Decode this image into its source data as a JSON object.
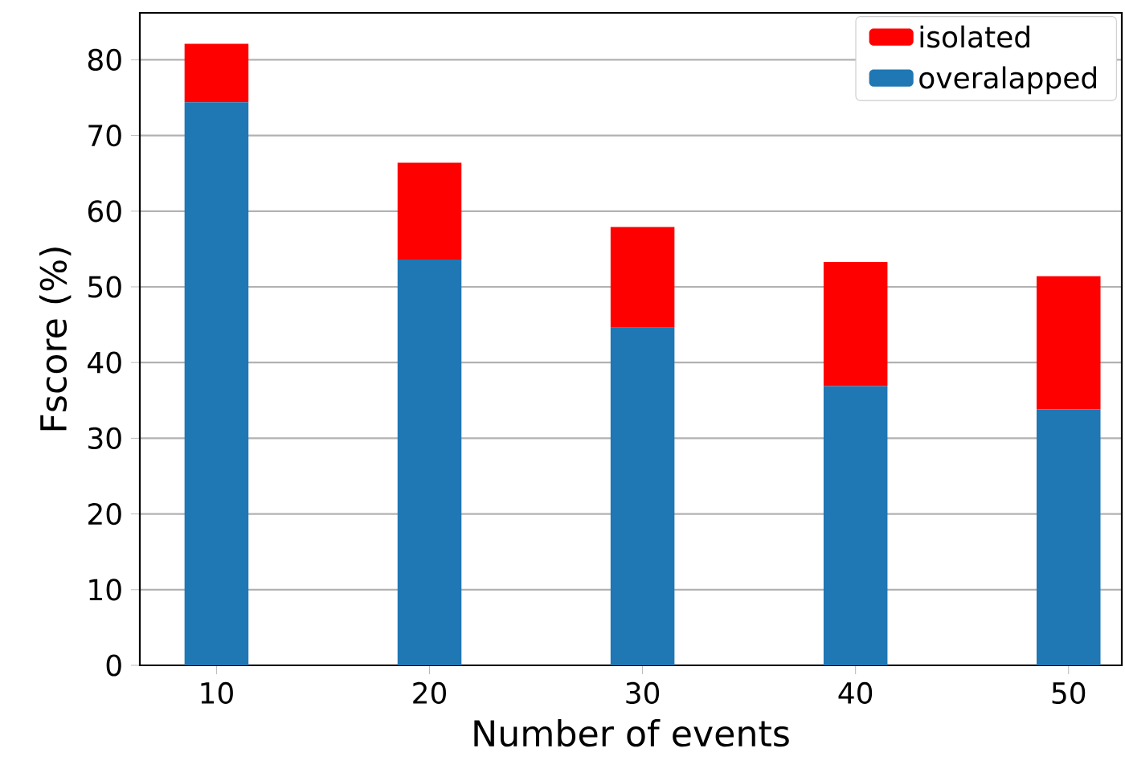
{
  "chart_data": {
    "type": "bar",
    "stacked": true,
    "xlabel": "Number of events",
    "ylabel": "Fscore (%)",
    "categories": [
      "10",
      "20",
      "30",
      "40",
      "50"
    ],
    "series": [
      {
        "name": "overalapped",
        "color": "#1f77b4",
        "values": [
          74.4,
          53.6,
          44.6,
          36.9,
          33.8
        ]
      },
      {
        "name": "isolated",
        "color": "#ff0000",
        "values": [
          7.7,
          12.8,
          13.3,
          16.4,
          17.6
        ]
      }
    ],
    "ylim": [
      0,
      86.2
    ],
    "yticks": [
      0,
      10,
      20,
      30,
      40,
      50,
      60,
      70,
      80
    ],
    "grid": "y",
    "legend": "top right"
  }
}
